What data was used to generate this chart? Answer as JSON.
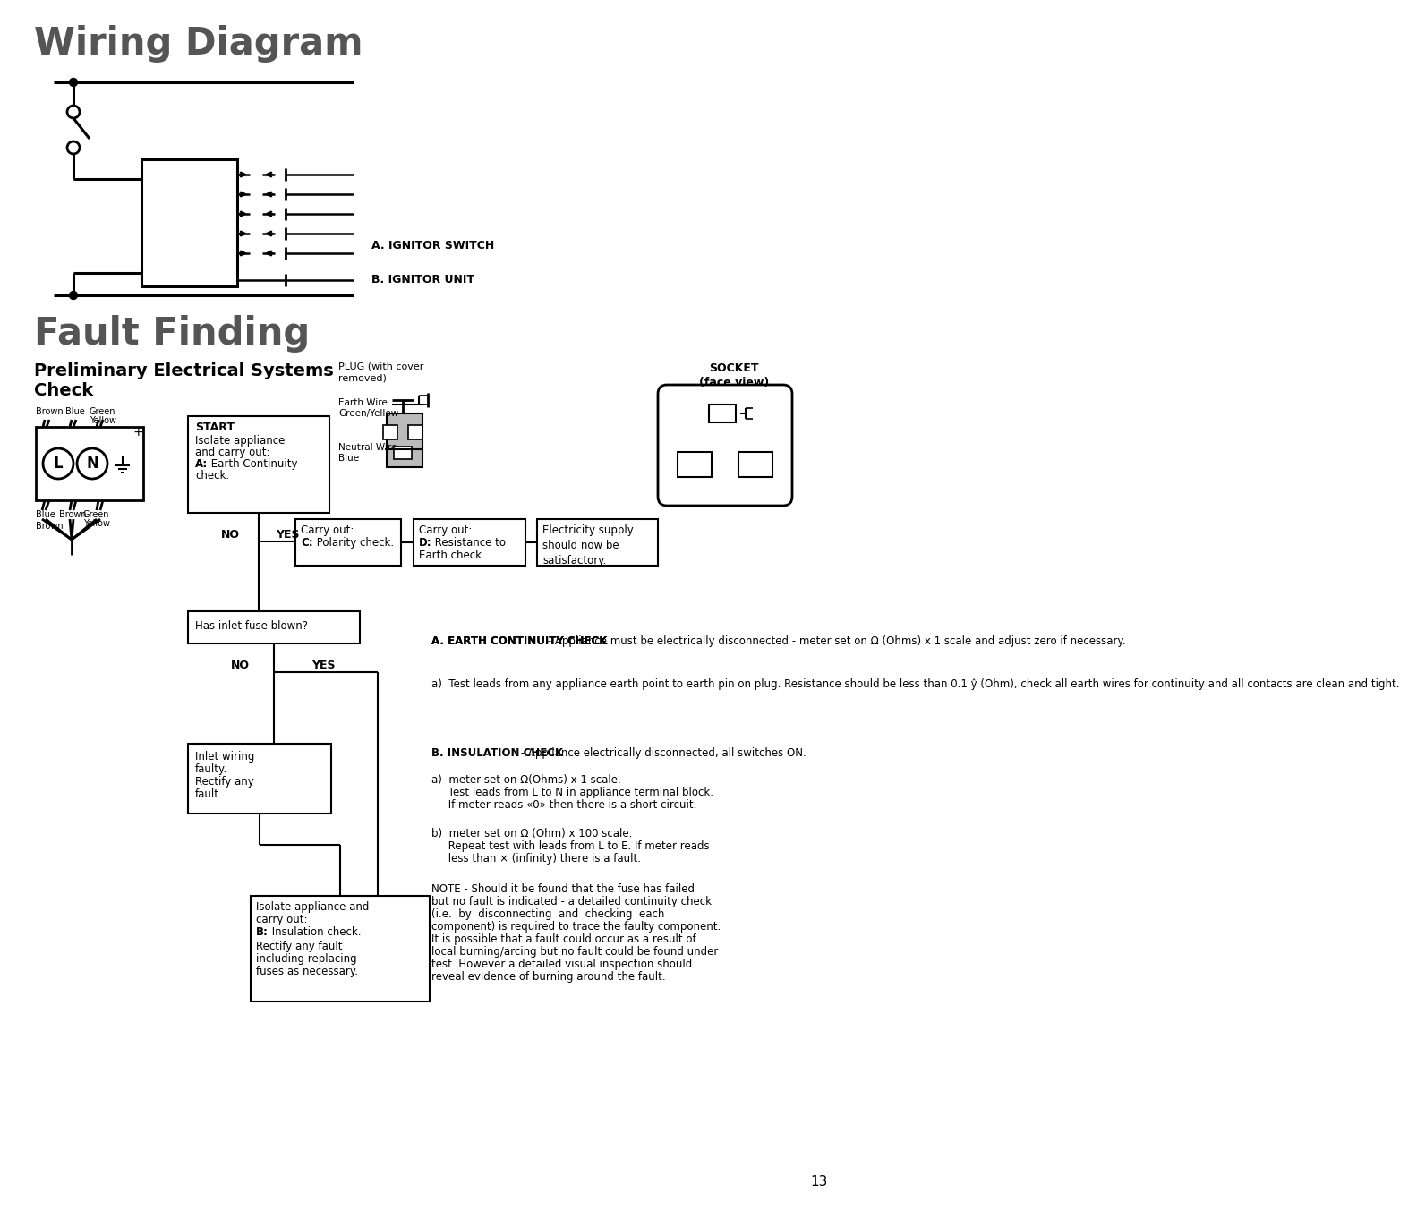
{
  "title1": "Wiring Diagram",
  "title2": "Fault Finding",
  "subtitle_line1": "Preliminary Electrical Systems",
  "subtitle_line2": "Check",
  "ignitor_switch_label": "A. IGNITOR SWITCH",
  "ignitor_unit_label": "B. IGNITOR UNIT",
  "plug_label": "PLUG (with cover\nremoved)",
  "socket_label": "SOCKET\n(face view)",
  "earth_wire_label": "Earth Wire\nGreen/Yellow",
  "neutral_wire_label": "Neutral Wire\nBlue",
  "start_box_text_line1": "START",
  "start_box_text_rest": "Isolate appliance\nand carry out:\nA: Earth Continuity\ncheck.",
  "start_bold_a": "A:",
  "no_label": "NO",
  "yes_label": "YES",
  "carry_out_c_line1": "Carry out:",
  "carry_out_c_bold": "C:",
  "carry_out_c_rest": " Polarity check.",
  "carry_out_d_line1": "Carry out:",
  "carry_out_d_bold": "D:",
  "carry_out_d_rest": " Resistance to\nEarth check.",
  "electricity_supply": "Electricity supply\nshould now be\nsatisfactory.",
  "fuse_box_text": "Has inlet fuse blown?",
  "inlet_wiring_bold": "Inlet wiring",
  "inlet_wiring_rest": "\nfaulty.\nRectify any\nfault.",
  "isolate_line1": "Isolate appliance and",
  "isolate_line2": "carry out:",
  "isolate_bold": "B:",
  "isolate_rest": " Insulation check.",
  "isolate_line4": "Rectify any fault",
  "isolate_line5": "including replacing",
  "isolate_line6": "fuses as necessary.",
  "section_a_title": "A. EARTH CONTINUITY CHECK",
  "section_a_text": " - Appliance must be electrically disconnected - meter set on Ω (Ohms) x 1 scale and adjust zero if necessary.",
  "section_a_a": "a)  Test leads from any appliance earth point to earth pin on plug. Resistance should be less than 0.1 ŷ (Ohm), check all earth wires for continuity and all contacts are clean and tight.",
  "section_b_title": "B. INSULATION CHECK",
  "section_b_text": " - Appliance electrically disconnected, all switches ON.",
  "section_b_a_line1": "a)  meter set on Ω(Ohms) x 1 scale.",
  "section_b_a_line2": "     Test leads from L to N in appliance terminal block.",
  "section_b_a_line3": "     If meter reads «0» then there is a short circuit.",
  "section_b_b_line1": "b)  meter set on Ω (Ohm) x 100 scale.",
  "section_b_b_line2": "     Repeat test with leads from L to E. If meter reads",
  "section_b_b_line3": "     less than × (infinity) there is a fault.",
  "note_text": "NOTE - Should it be found that the fuse has failed but no fault is indicated - a detailed continuity check (i.e.  by  disconnecting  and  checking  each component) is required to trace the faulty component. It is possible that a fault could occur as a result of local burning/arcing but no fault could be found under test. However a detailed visual inspection should reveal evidence of burning around the fault.",
  "page_number": "13",
  "bg_color": "#ffffff",
  "text_color": "#000000",
  "title_color": "#555555"
}
